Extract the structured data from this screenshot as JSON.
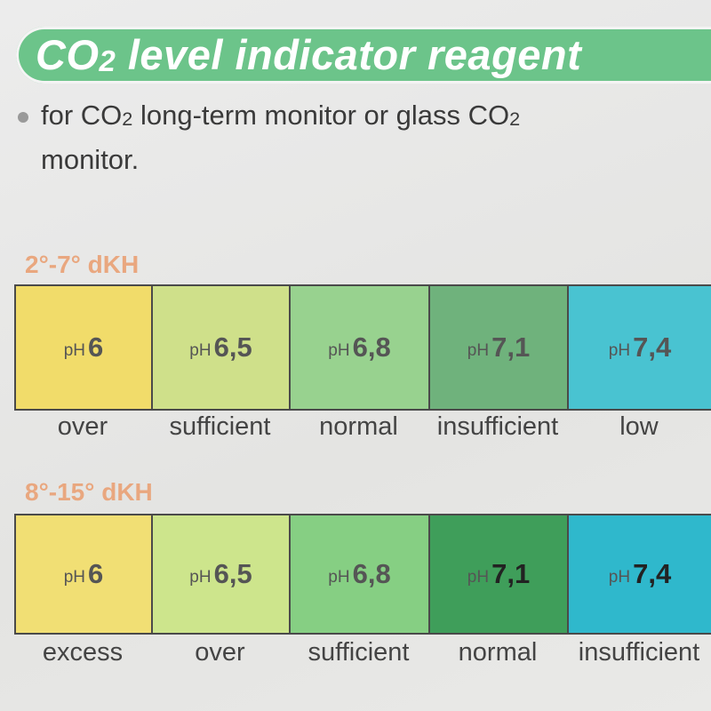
{
  "banner": {
    "title_a": "CO",
    "title_sub": "2",
    "title_b": " level indicator reagent"
  },
  "description": {
    "line1_a": "for CO",
    "line1_sub": "2",
    "line1_b": " long-term monitor or glass CO",
    "line1_sub2": "2",
    "line2": "monitor."
  },
  "charts": [
    {
      "heading": "2°-7° dKH",
      "cells": [
        {
          "ph": "pH",
          "value": "6",
          "label": "over",
          "color": "#f1dc6a"
        },
        {
          "ph": "pH",
          "value": "6,5",
          "label": "sufficient",
          "color": "#cfe08a"
        },
        {
          "ph": "pH",
          "value": "6,8",
          "label": "normal",
          "color": "#98d28f"
        },
        {
          "ph": "pH",
          "value": "7,1",
          "label": "insufficient",
          "color": "#6fb27c"
        },
        {
          "ph": "pH",
          "value": "7,4",
          "label": "low",
          "color": "#49c3d1"
        }
      ]
    },
    {
      "heading": "8°-15° dKH",
      "cells": [
        {
          "ph": "pH",
          "value": "6",
          "label": "excess",
          "color": "#f1df74"
        },
        {
          "ph": "pH",
          "value": "6,5",
          "label": "over",
          "color": "#cde58c"
        },
        {
          "ph": "pH",
          "value": "6,8",
          "label": "sufficient",
          "color": "#86cf83"
        },
        {
          "ph": "pH",
          "value": "7,1",
          "label": "normal",
          "color": "#3f9e5a"
        },
        {
          "ph": "pH",
          "value": "7,4",
          "label": "insufficient",
          "color": "#2fb8cc"
        }
      ]
    }
  ]
}
